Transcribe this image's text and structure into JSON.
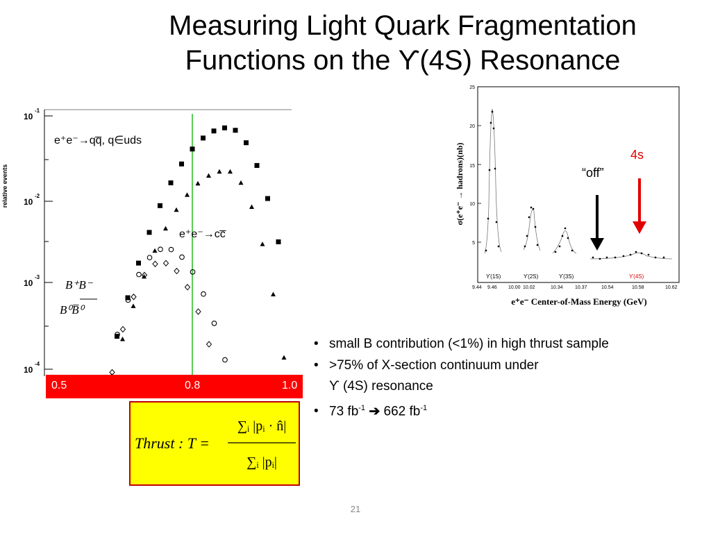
{
  "slide": {
    "title_line1": "Measuring Light Quark Fragmentation",
    "title_line2": "Functions on the ϒ(4S) Resonance",
    "page_number": "21"
  },
  "left_plot": {
    "ylabel": "relative events",
    "y_ticks": [
      {
        "base": "10",
        "exp": "-1"
      },
      {
        "base": "10",
        "exp": "-2"
      },
      {
        "base": "10",
        "exp": "-3"
      },
      {
        "base": "10",
        "exp": "-4"
      }
    ],
    "label_qq": "e⁺e⁻→qq̅, q∈uds",
    "label_cc": "e⁺e⁻→cc̅",
    "label_bb_num": "B⁺B⁻",
    "label_bb_den": "B⁰B̅⁰",
    "x_ticks": [
      "0.5",
      "0.8",
      "1.0"
    ],
    "colors": {
      "green_line": "#22bb22",
      "red_bar": "#ff0000"
    }
  },
  "formula": {
    "lhs": "Thrust : T =",
    "numerator": "∑ᵢ |pᵢ · n̂|",
    "denominator": "∑ᵢ |pᵢ|"
  },
  "right_plot": {
    "ylabel": "σ(e⁺e⁻ → hadrons)(nb)",
    "xlabel": "e⁺e⁻ Center-of-Mass Energy (GeV)",
    "y_ticks": [
      "25",
      "20",
      "15",
      "10",
      "5"
    ],
    "x_ticks": [
      "9.44",
      "9.46",
      "10.00",
      "10.02",
      "10.34",
      "10.37",
      "10.54",
      "10.58",
      "10.62"
    ],
    "resonance_labels": [
      "ϒ(1S)",
      "ϒ(2S)",
      "ϒ(3S)",
      "ϒ(4S)"
    ],
    "off_label": "“off”",
    "on_label": "4s",
    "colors": {
      "off_arrow": "#000000",
      "on_arrow": "#e00000"
    }
  },
  "bullets": {
    "b1": "small B contribution (<1%) in high thrust sample",
    "b2": ">75% of X-section continuum under",
    "b2_cont": "ϒ (4S) resonance",
    "b3_a": "73 fb",
    "b3_exp1": "-1",
    "b3_b": "662 fb",
    "b3_exp2": "-1"
  }
}
